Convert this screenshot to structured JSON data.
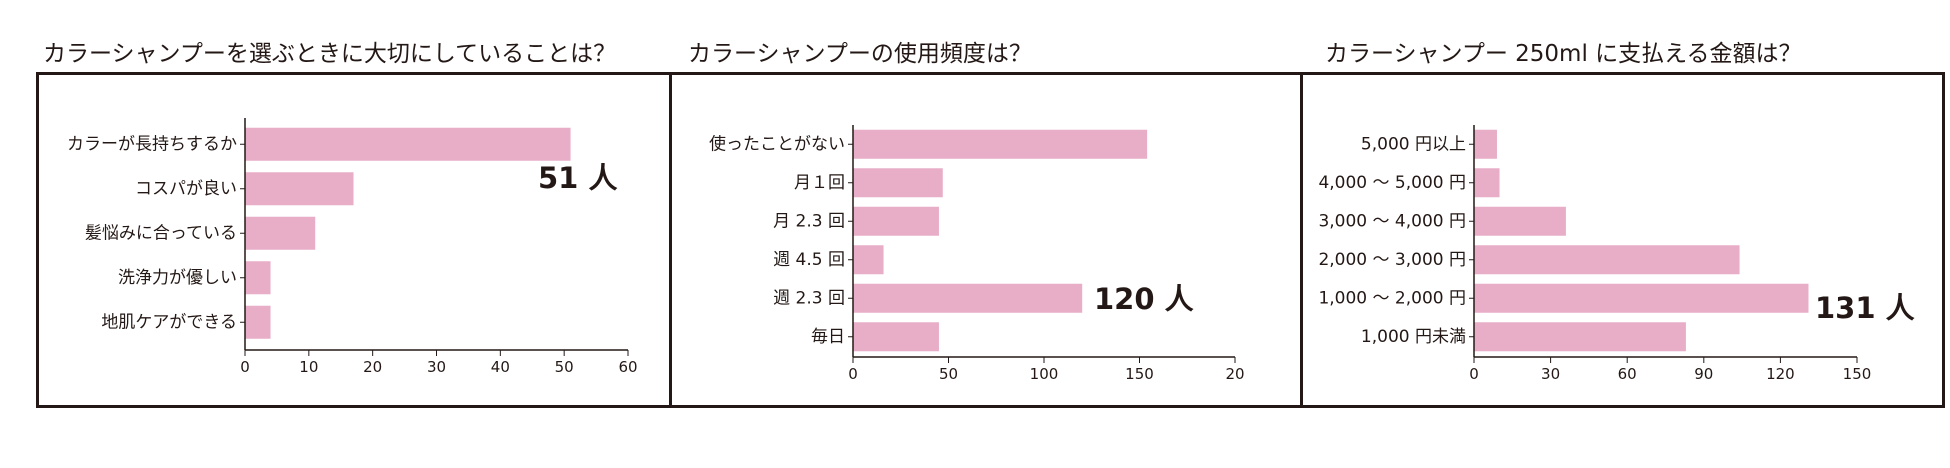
{
  "colors": {
    "bar": "#e8aec8",
    "axis": "#231815",
    "frame": "#231815"
  },
  "chart_data": [
    {
      "type": "bar",
      "orientation": "horizontal",
      "title": "カラーシャンプーを選ぶときに大切にしていることは？",
      "categories": [
        "カラーが長持ちするか",
        "コスパが良い",
        "髪悩みに合っている",
        "洗浄力が優しい",
        "地肌ケアができる"
      ],
      "values": [
        51,
        17,
        11,
        4,
        4
      ],
      "xlim": [
        0,
        60
      ],
      "xticks": [
        "0",
        "10",
        "20",
        "30",
        "40",
        "50",
        "60"
      ],
      "annotation": "51 人",
      "grid": false,
      "xlabel": "",
      "ylabel": ""
    },
    {
      "type": "bar",
      "orientation": "horizontal",
      "title": "カラーシャンプーの使用頻度は？",
      "categories": [
        "使ったことがない",
        "月１回",
        "月 2.3 回",
        "週 4.5 回",
        "週 2.3 回",
        "毎日"
      ],
      "values": [
        154,
        47,
        45,
        16,
        120,
        45
      ],
      "xlim": [
        0,
        200
      ],
      "xticks": [
        "0",
        "50",
        "100",
        "150",
        "20"
      ],
      "annotation": "120 人",
      "grid": false,
      "xlabel": "",
      "ylabel": ""
    },
    {
      "type": "bar",
      "orientation": "horizontal",
      "title": "カラーシャンプー 250ml に支払える金額は？",
      "categories": [
        "5,000 円以上",
        "4,000 〜 5,000 円",
        "3,000 〜 4,000 円",
        "2,000 〜 3,000 円",
        "1,000 〜 2,000 円",
        "1,000 円未満"
      ],
      "values": [
        9,
        10,
        36,
        104,
        131,
        83
      ],
      "xlim": [
        0,
        150
      ],
      "xticks": [
        "0",
        "30",
        "60",
        "90",
        "120",
        "150"
      ],
      "annotation": "131 人",
      "grid": false,
      "xlabel": "",
      "ylabel": ""
    }
  ]
}
